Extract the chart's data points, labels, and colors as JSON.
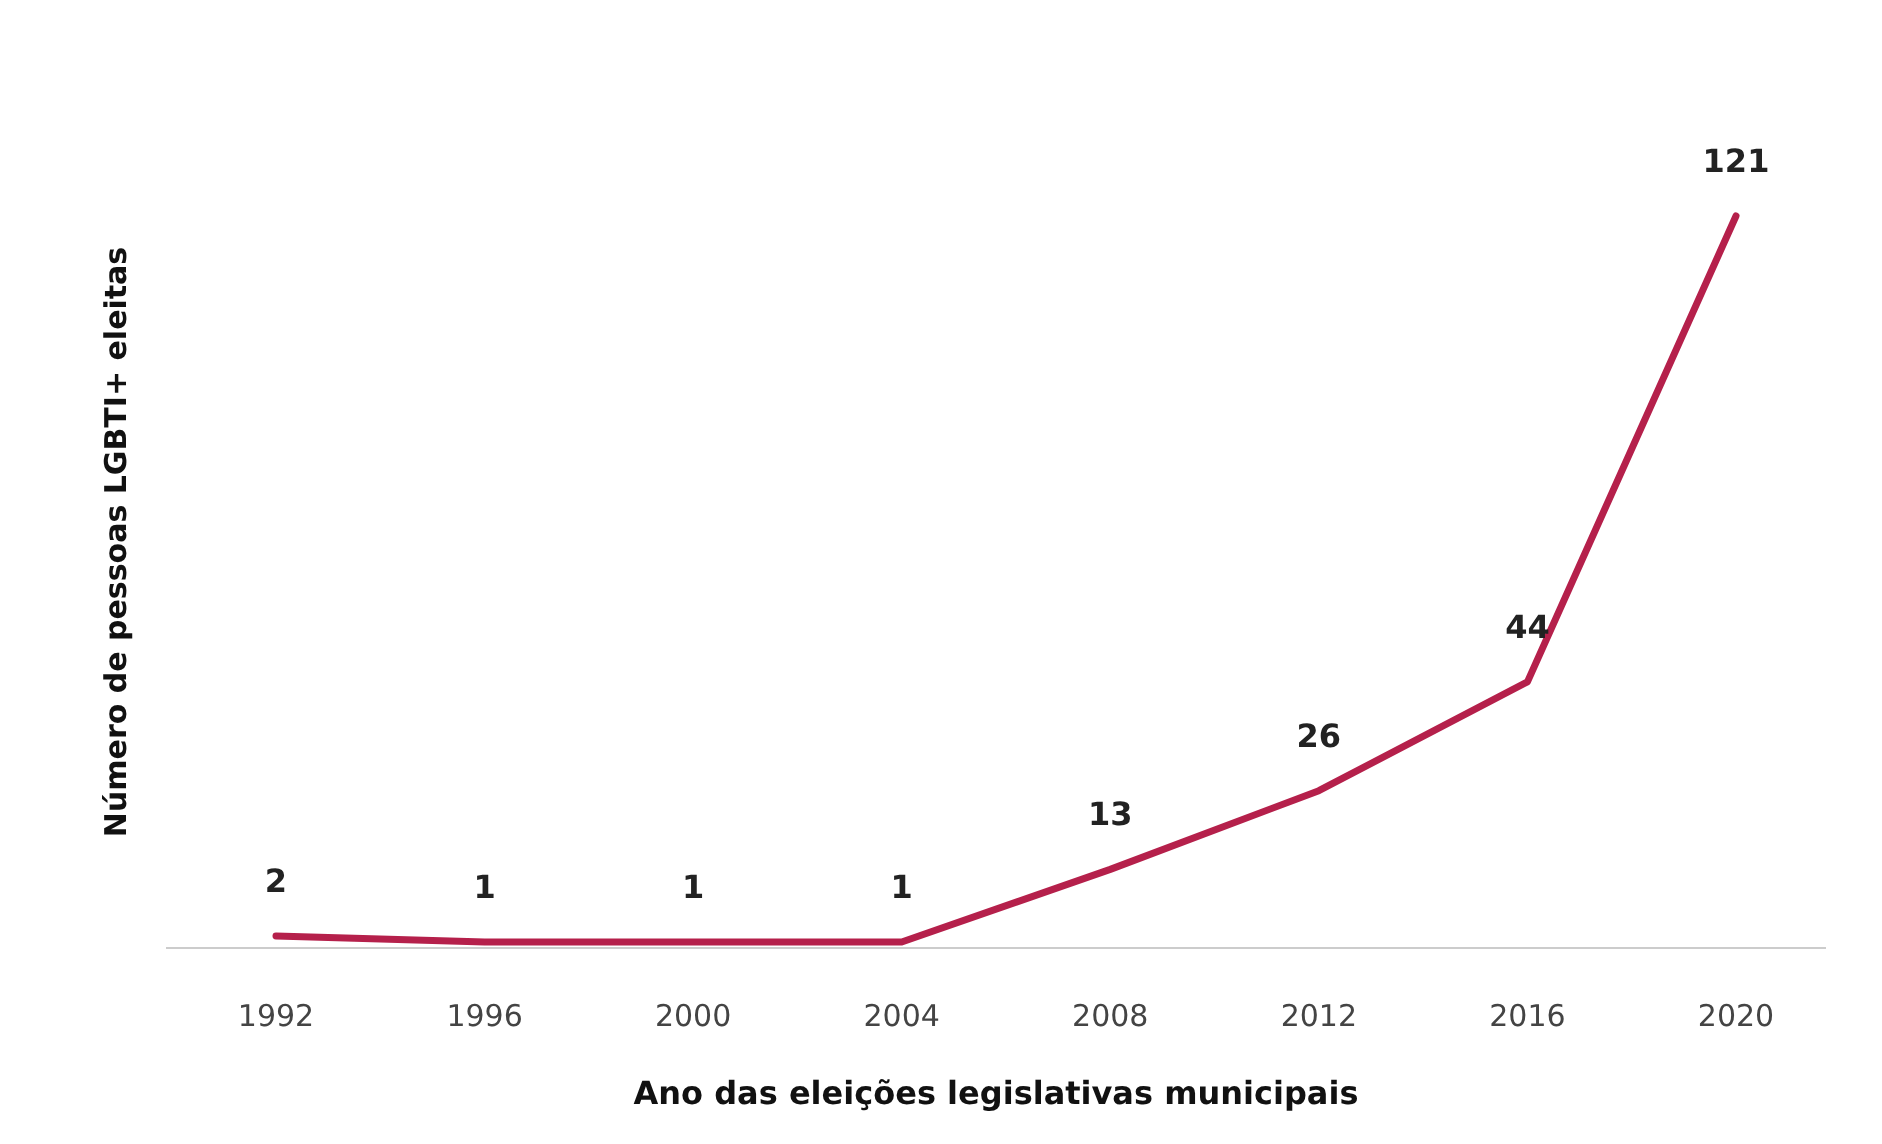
{
  "chart_data": {
    "type": "line",
    "xlabel": "Ano das eleições legislativas municipais",
    "ylabel": "Número de pessoas LGBTI+ eleitas",
    "categories": [
      "1992",
      "1996",
      "2000",
      "2004",
      "2008",
      "2012",
      "2016",
      "2020"
    ],
    "series": [
      {
        "color": "#b5204b",
        "values": [
          2,
          1,
          1,
          1,
          13,
          26,
          44,
          121
        ]
      }
    ],
    "data_labels": true,
    "line_style": "solid"
  }
}
